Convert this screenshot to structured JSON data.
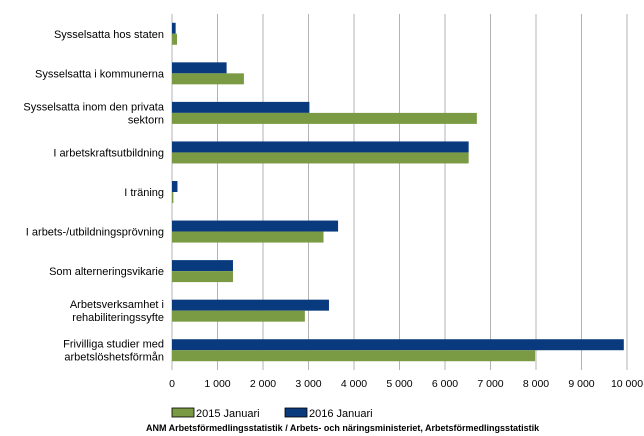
{
  "chart_data": {
    "type": "bar",
    "orientation": "horizontal",
    "categories": [
      [
        "Sysselsatta hos staten"
      ],
      [
        "Sysselsatta i kommunerna"
      ],
      [
        "Sysselsatta inom den privata",
        "sektorn"
      ],
      [
        "I arbetskraftsutbildning"
      ],
      [
        "I träning"
      ],
      [
        "I arbets-/utbildningsprövning"
      ],
      [
        "Som alterneringsvikarie"
      ],
      [
        "Arbetsverksamhet i",
        "rehabiliteringssyfte"
      ],
      [
        "Frivilliga studier med",
        "arbetslöshetsförmån"
      ]
    ],
    "series": [
      {
        "name": "2016 Januari",
        "color": "#0a3a7e",
        "values": [
          80,
          1200,
          3020,
          6520,
          120,
          3650,
          1340,
          3450,
          9930
        ]
      },
      {
        "name": "2015 Januari",
        "color": "#7a9a44",
        "values": [
          110,
          1580,
          6700,
          6520,
          30,
          3330,
          1340,
          2920,
          7980
        ]
      }
    ],
    "xlim": [
      0,
      10000
    ],
    "xticks": [
      0,
      1000,
      2000,
      3000,
      4000,
      5000,
      6000,
      7000,
      8000,
      9000,
      10000
    ],
    "xtick_labels": [
      "0",
      "1 000",
      "2 000",
      "3 000",
      "4 000",
      "5 000",
      "6 000",
      "7 000",
      "8 000",
      "9 000",
      "10 000"
    ],
    "grid": true,
    "legend_position": "bottom",
    "legend_order": [
      "2015 Januari",
      "2016 Januari"
    ],
    "source": "ANM Arbetsförmedlingsstatistik / Arbets- och näringsministeriet, Arbetsförmedlingsstatistik"
  }
}
